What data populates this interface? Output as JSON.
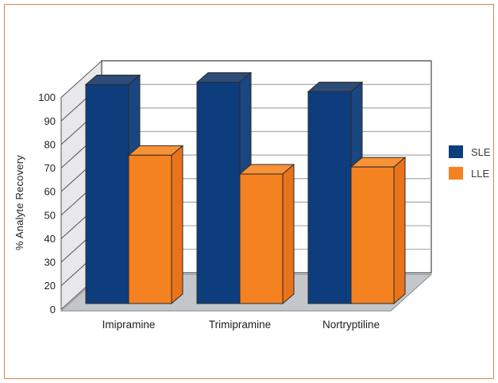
{
  "frame": {
    "border_color": "#cf8a52",
    "background_color": "#ffffff"
  },
  "chart_data": {
    "type": "bar",
    "projection": "3d",
    "title": "",
    "xlabel": "",
    "ylabel": "% Analyte Recovery",
    "categories": [
      "Imipramine",
      "Trimipramine",
      "Nortryptiline"
    ],
    "series": [
      {
        "name": "SLE",
        "values": [
          103,
          104,
          100
        ],
        "color": "#0d3d7c",
        "color_top": "#2d4c77",
        "color_side": "#1a4682"
      },
      {
        "name": "LLE",
        "values": [
          73,
          65,
          68
        ],
        "color": "#f58220",
        "color_top": "#f79238",
        "color_side": "#e8731a"
      }
    ],
    "yticks": [
      0,
      20,
      30,
      40,
      50,
      60,
      70,
      80,
      90,
      100
    ],
    "ylim": [
      0,
      100
    ],
    "grid": true,
    "legend_position": "right",
    "wall_color": "#e7e7ec",
    "wall_hatch_color": "#555555",
    "floor_color": "#c3c7cb",
    "back_wall_color": "#ffffff",
    "gridline_color": "#a9a9a9",
    "frame_line_color": "#222222",
    "bar_outline_color": "#2b2b2b",
    "axis_text_color": "#1f1f1f"
  }
}
